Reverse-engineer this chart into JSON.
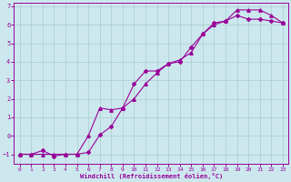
{
  "xlabel": "Windchill (Refroidissement éolien,°C)",
  "background_color": "#cce8ee",
  "grid_color": "#aacccc",
  "line_color": "#990099",
  "xlim": [
    -0.5,
    23.5
  ],
  "ylim": [
    -1.5,
    7.2
  ],
  "yticks": [
    -1,
    0,
    1,
    2,
    3,
    4,
    5,
    6,
    7
  ],
  "xticks": [
    0,
    1,
    2,
    3,
    4,
    5,
    6,
    7,
    8,
    9,
    10,
    11,
    12,
    13,
    14,
    15,
    16,
    17,
    18,
    19,
    20,
    21,
    22,
    23
  ],
  "line1_x": [
    0,
    1,
    2,
    3,
    4,
    5,
    6,
    7,
    8,
    9,
    10,
    11,
    12,
    13,
    14,
    15,
    16,
    17,
    18,
    19,
    20,
    21,
    22,
    23
  ],
  "line1_y": [
    -1.0,
    -1.0,
    -0.8,
    -1.1,
    -1.0,
    -1.0,
    -0.9,
    0.05,
    0.5,
    1.5,
    2.8,
    3.5,
    3.5,
    3.9,
    4.0,
    4.8,
    5.5,
    6.1,
    6.2,
    6.5,
    6.3,
    6.3,
    6.2,
    6.1
  ],
  "line2_x": [
    0,
    1,
    2,
    3,
    4,
    5,
    6,
    7,
    8,
    9,
    10,
    11,
    12,
    13,
    14,
    15,
    16,
    17,
    18,
    19,
    20,
    21,
    22,
    23
  ],
  "line2_y": [
    -1.0,
    -1.0,
    -1.0,
    -1.0,
    -1.0,
    -1.0,
    0.0,
    1.5,
    1.4,
    1.5,
    2.0,
    2.8,
    3.4,
    3.9,
    4.1,
    4.5,
    5.5,
    6.0,
    6.2,
    6.8,
    6.8,
    6.8,
    6.5,
    6.1
  ]
}
